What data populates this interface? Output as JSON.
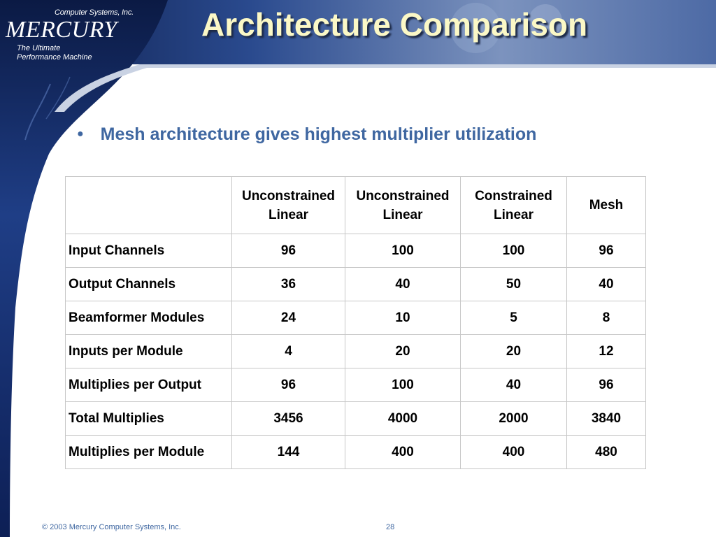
{
  "brand": {
    "company_line": "Computer Systems, Inc.",
    "name": "MERCURY",
    "tagline_line1": "The Ultimate",
    "tagline_line2": "Performance Machine"
  },
  "slide": {
    "title": "Architecture Comparison",
    "bullet": "Mesh architecture gives highest multiplier utilization"
  },
  "table": {
    "headers": [
      "",
      "Unconstrained\nLinear",
      "Unconstrained\nLinear",
      "Constrained\nLinear",
      "Mesh"
    ],
    "rows": [
      {
        "label": "Input Channels",
        "values": [
          "96",
          "100",
          "100",
          "96"
        ]
      },
      {
        "label": "Output Channels",
        "values": [
          "36",
          "40",
          "50",
          "40"
        ]
      },
      {
        "label": "Beamformer Modules",
        "values": [
          "24",
          "10",
          "5",
          "8"
        ]
      },
      {
        "label": "Inputs per Module",
        "values": [
          "4",
          "20",
          "20",
          "12"
        ]
      },
      {
        "label": "Multiplies per Output",
        "values": [
          "96",
          "100",
          "40",
          "96"
        ]
      },
      {
        "label": "Total Multiplies",
        "values": [
          "3456",
          "4000",
          "2000",
          "3840"
        ]
      },
      {
        "label": "Multiplies per Module",
        "values": [
          "144",
          "400",
          "400",
          "480"
        ]
      }
    ]
  },
  "footer": {
    "copyright": "© 2003 Mercury Computer Systems, Inc.",
    "page_number": "28"
  },
  "colors": {
    "sidebar_dark": "#0B1A44",
    "sidebar_mid": "#1F3E86",
    "title_text": "#FBF8C6",
    "bullet_text": "#3F67A1",
    "table_border": "#C7C7C7"
  }
}
